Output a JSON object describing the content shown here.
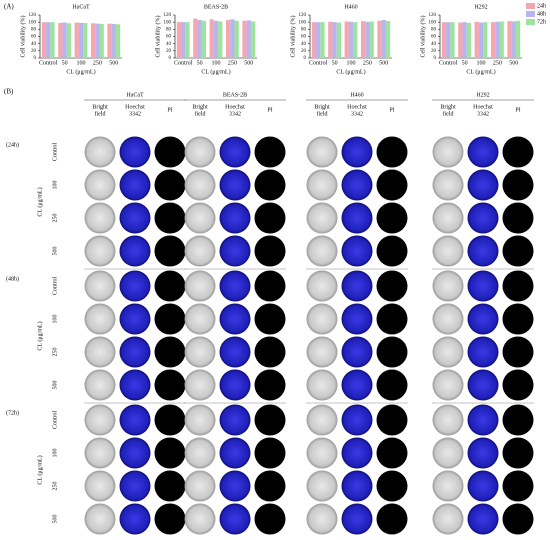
{
  "chart_data": [
    {
      "type": "bar",
      "title": "HaCaT",
      "ylabel": "Cell viability (%)",
      "xlabel": "CL (μg/mL)",
      "categories": [
        "Control",
        "50",
        "100",
        "250",
        "500"
      ],
      "series": [
        {
          "name": "24h",
          "color": "#f4a7b0",
          "values": [
            100,
            98,
            99,
            97,
            96
          ]
        },
        {
          "name": "48h",
          "color": "#b8b4ee",
          "values": [
            100,
            99,
            98,
            96,
            95
          ]
        },
        {
          "name": "72h",
          "color": "#9de39d",
          "values": [
            100,
            97,
            98,
            95,
            94
          ]
        }
      ],
      "ylim": [
        0,
        120
      ],
      "yticks": [
        0,
        20,
        40,
        60,
        80,
        100,
        120
      ],
      "legend": false
    },
    {
      "type": "bar",
      "title": "BEAS-2B",
      "ylabel": "Cell viability (%)",
      "xlabel": "CL (μg/mL)",
      "categories": [
        "Control",
        "50",
        "100",
        "250",
        "500"
      ],
      "series": [
        {
          "name": "24h",
          "color": "#f4a7b0",
          "values": [
            100,
            110,
            108,
            106,
            104
          ]
        },
        {
          "name": "48h",
          "color": "#b8b4ee",
          "values": [
            100,
            106,
            104,
            108,
            105
          ]
        },
        {
          "name": "72h",
          "color": "#9de39d",
          "values": [
            100,
            104,
            102,
            104,
            102
          ]
        }
      ],
      "ylim": [
        0,
        120
      ],
      "yticks": [
        0,
        20,
        40,
        60,
        80,
        100,
        120
      ],
      "legend": false
    },
    {
      "type": "bar",
      "title": "H460",
      "ylabel": "Cell viability (%)",
      "xlabel": "CL (μg/mL)",
      "categories": [
        "Control",
        "50",
        "100",
        "250",
        "500"
      ],
      "series": [
        {
          "name": "24h",
          "color": "#f4a7b0",
          "values": [
            100,
            101,
            102,
            103,
            104
          ]
        },
        {
          "name": "48h",
          "color": "#b8b4ee",
          "values": [
            100,
            100,
            101,
            101,
            106
          ]
        },
        {
          "name": "72h",
          "color": "#9de39d",
          "values": [
            100,
            99,
            100,
            102,
            103
          ]
        }
      ],
      "ylim": [
        0,
        120
      ],
      "yticks": [
        0,
        20,
        40,
        60,
        80,
        100,
        120
      ],
      "legend": false
    },
    {
      "type": "bar",
      "title": "H292",
      "ylabel": "Cell viability (%)",
      "xlabel": "CL (μg/mL)",
      "categories": [
        "Control",
        "50",
        "100",
        "250",
        "500"
      ],
      "series": [
        {
          "name": "24h",
          "color": "#f4a7b0",
          "values": [
            100,
            99,
            101,
            100,
            103
          ]
        },
        {
          "name": "48h",
          "color": "#b8b4ee",
          "values": [
            100,
            100,
            99,
            101,
            102
          ]
        },
        {
          "name": "72h",
          "color": "#9de39d",
          "values": [
            100,
            98,
            100,
            102,
            104
          ]
        }
      ],
      "ylim": [
        0,
        120
      ],
      "yticks": [
        0,
        20,
        40,
        60,
        80,
        100,
        120
      ],
      "legend": "right"
    }
  ],
  "panels": {
    "a": "(A)",
    "b": "(B)"
  },
  "imaging": {
    "cell_lines": [
      "HaCaT",
      "BEAS-2B",
      "H460",
      "H292"
    ],
    "columns": [
      [
        "Bright",
        "field"
      ],
      [
        "Hoechst",
        "3342"
      ],
      [
        "PI"
      ]
    ],
    "times": [
      "(24h)",
      "(48h)",
      "(72h)"
    ],
    "rows": [
      "Control",
      "100",
      "250",
      "500"
    ],
    "axis_label": "CL (μg/mL)"
  }
}
